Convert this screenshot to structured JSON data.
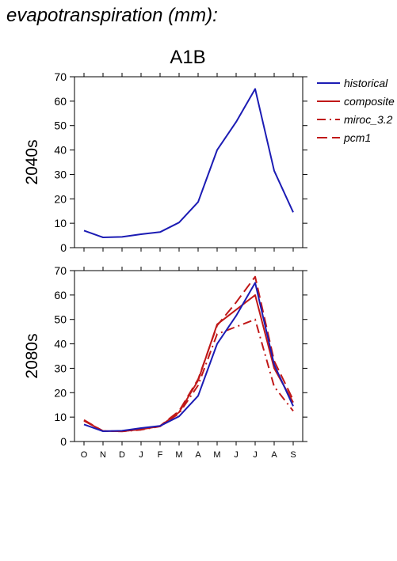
{
  "page_title": "evapotranspiration (mm):",
  "scenario": "A1B",
  "legend": [
    "historical",
    "composite",
    "miroc_3.2",
    "pcm1"
  ],
  "colors": {
    "historical": "#1c1cb4",
    "composite": "#c01818",
    "miroc_3.2": "#c01818",
    "pcm1": "#c01818"
  },
  "chart_data": [
    {
      "type": "line",
      "ylabel": "2040s",
      "categories": [
        "O",
        "N",
        "D",
        "J",
        "F",
        "M",
        "A",
        "M",
        "J",
        "J",
        "A",
        "S"
      ],
      "ylim": [
        0,
        70
      ],
      "yticks": [
        0,
        10,
        20,
        30,
        40,
        50,
        60,
        70
      ],
      "series": [
        {
          "name": "historical",
          "style": "solid",
          "values": [
            7,
            4.2,
            4.4,
            5.5,
            6.4,
            10.3,
            18.7,
            40,
            51.5,
            65,
            31.5,
            14.5
          ]
        }
      ]
    },
    {
      "type": "line",
      "ylabel": "2080s",
      "categories": [
        "O",
        "N",
        "D",
        "J",
        "F",
        "M",
        "A",
        "M",
        "J",
        "J",
        "A",
        "S"
      ],
      "ylim": [
        0,
        70
      ],
      "yticks": [
        0,
        10,
        20,
        30,
        40,
        50,
        60,
        70
      ],
      "series": [
        {
          "name": "historical",
          "style": "solid",
          "values": [
            7,
            4.2,
            4.4,
            5.5,
            6.4,
            10.3,
            18.7,
            40,
            51.5,
            65,
            31.5,
            14.5
          ]
        },
        {
          "name": "composite",
          "style": "solid",
          "values": [
            8.5,
            4.3,
            4.2,
            5,
            6.3,
            12,
            25,
            48,
            54,
            60,
            30,
            16
          ]
        },
        {
          "name": "miroc_3.2",
          "style": "dashdot",
          "values": [
            8.5,
            4.3,
            4.1,
            4.8,
            6.2,
            11.5,
            23,
            44,
            47,
            50,
            22.5,
            12.5
          ]
        },
        {
          "name": "pcm1",
          "style": "dashed",
          "values": [
            8.8,
            4.3,
            4.2,
            5,
            6.4,
            12.5,
            25.5,
            47.5,
            57,
            67.5,
            33,
            17
          ]
        }
      ]
    }
  ]
}
